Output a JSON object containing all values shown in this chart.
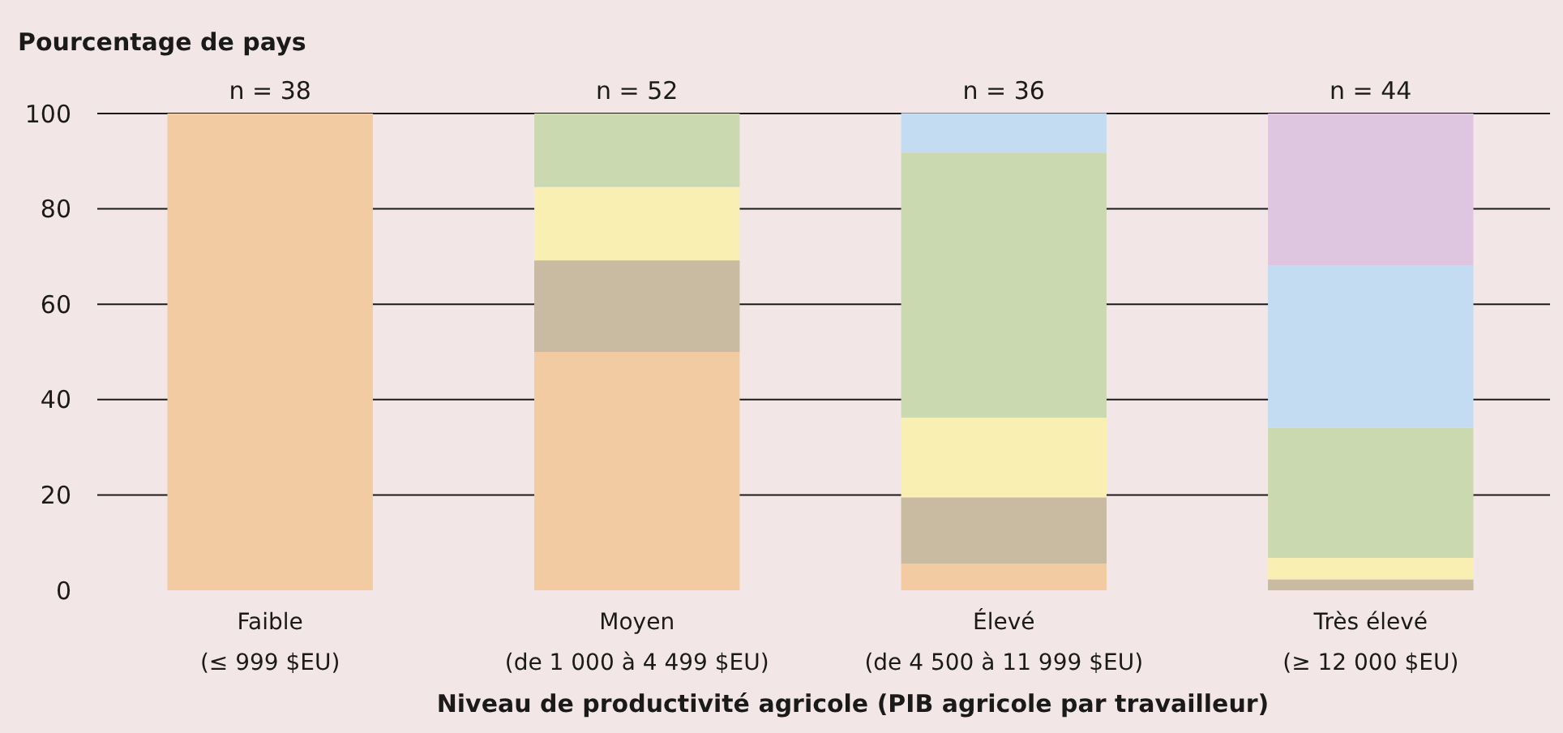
{
  "chart_data": {
    "type": "bar",
    "stacked": true,
    "ylabel": "Pourcentage de pays",
    "xlabel": "Niveau de productivité agricole (PIB agricole par travailleur)",
    "categories": [
      "Faible\n(≤ 999 $EU)",
      "Moyen\n(de 1 000 à 4 499 $EU)",
      "Élevé\n(de 4 500 à 11 999 $EU)",
      "Très élevé\n(≥ 12 000 $EU)"
    ],
    "series": [
      {
        "color": "#f3cba3",
        "values": [
          100,
          50,
          5.6,
          0
        ]
      },
      {
        "color": "#c9bba2",
        "values": [
          0,
          19.2,
          13.9,
          2.3
        ]
      },
      {
        "color": "#faefb3",
        "values": [
          0,
          15.4,
          16.7,
          4.5
        ]
      },
      {
        "color": "#cbd9b0",
        "values": [
          0,
          15.4,
          55.6,
          27.3
        ]
      },
      {
        "color": "#c3dcf1",
        "values": [
          0,
          0,
          8.3,
          34.1
        ]
      },
      {
        "color": "#dec6e0",
        "values": [
          0,
          0,
          0,
          31.8
        ]
      }
    ],
    "ylim": [
      0,
      100
    ],
    "yticks": [
      0,
      20,
      40,
      60,
      80,
      100
    ],
    "grid": "y",
    "annotations": [
      {
        "text": "n = 38",
        "x": "Faible\n(≤ 999 $EU)",
        "y": 100
      },
      {
        "text": "n = 52",
        "x": "Moyen\n(de 1 000 à 4 499 $EU)",
        "y": 100
      },
      {
        "text": "n = 36",
        "x": "Élevé\n(de 4 500 à 11 999 $EU)",
        "y": 100
      },
      {
        "text": "n = 44",
        "x": "Très élevé\n(≥ 12 000 $EU)",
        "y": 100
      }
    ]
  }
}
